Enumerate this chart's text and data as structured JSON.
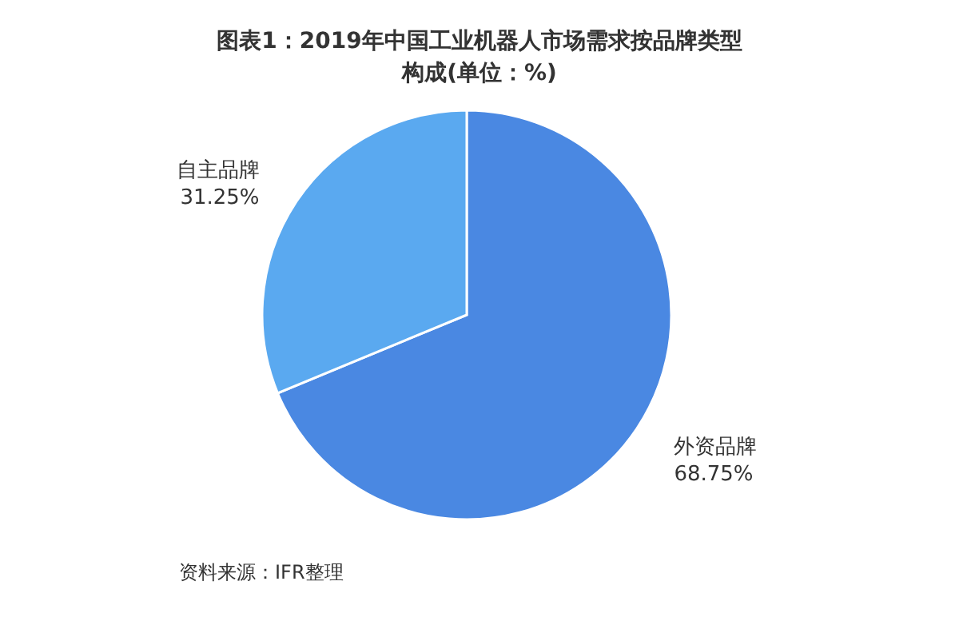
{
  "chart_data": {
    "type": "pie",
    "title": "图表1：2019年中国工业机器人市场需求按品牌类型构成(单位：%)",
    "categories": [
      "外资品牌",
      "自主品牌"
    ],
    "values": [
      68.75,
      31.25
    ],
    "colors": [
      "#4a88e2",
      "#5aa9f0"
    ],
    "value_labels": [
      "68.75%",
      "31.25%"
    ],
    "annotations": [
      "资料来源：IFR整理"
    ]
  }
}
